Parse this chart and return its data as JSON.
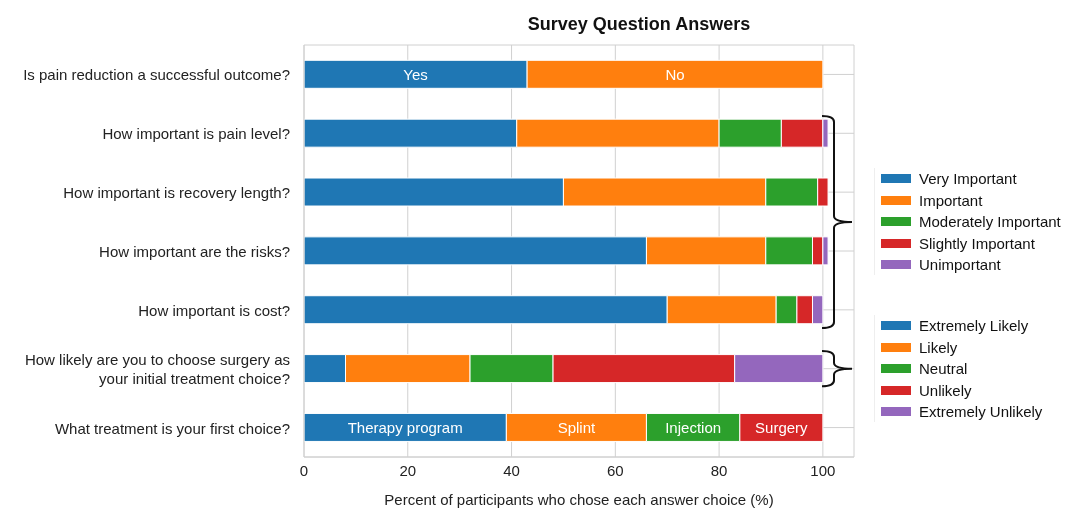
{
  "chart_data": {
    "type": "bar",
    "orientation": "horizontal",
    "stacked": true,
    "title": "Survey Question Answers",
    "xlabel": "Percent of participants who chose each answer choice (%)",
    "categories": [
      "Is pain reduction a successful outcome?",
      "How important is pain level?",
      "How important is recovery length?",
      "How important are the risks?",
      "How important is cost?",
      "How likely are you to choose surgery as your initial treatment choice?",
      "What treatment is your first choice?"
    ],
    "xlim": [
      0,
      106
    ],
    "xticks": [
      0,
      20,
      40,
      60,
      80,
      100
    ],
    "grid": true,
    "legend": "right",
    "series": [
      {
        "color": "#1f77b4",
        "values": [
          43,
          null,
          null,
          null,
          null,
          null,
          null
        ]
      },
      {
        "color": "#ff7f0e",
        "values": [
          57,
          null,
          null,
          null,
          null,
          null,
          null
        ]
      },
      {
        "name": "Very Important",
        "color": "#1f77b4",
        "values": [
          null,
          41,
          50,
          66,
          70,
          null,
          null
        ]
      },
      {
        "name": "Important",
        "color": "#ff7f0e",
        "values": [
          null,
          39,
          39,
          23,
          21,
          null,
          null
        ]
      },
      {
        "name": "Moderately Important",
        "color": "#2ca02c",
        "values": [
          null,
          12,
          10,
          9,
          4,
          null,
          null
        ]
      },
      {
        "name": "Slightly Important",
        "color": "#d62728",
        "values": [
          null,
          8,
          2,
          2,
          3,
          null,
          null
        ]
      },
      {
        "name": "Unimportant",
        "color": "#9467bd",
        "values": [
          null,
          1,
          null,
          1,
          2,
          null,
          null
        ]
      },
      {
        "name": "Extremely Likely",
        "color": "#1f77b4",
        "values": [
          null,
          null,
          null,
          null,
          null,
          8,
          null
        ]
      },
      {
        "name": "Likely",
        "color": "#ff7f0e",
        "values": [
          null,
          null,
          null,
          null,
          null,
          24,
          null
        ]
      },
      {
        "name": "Neutral",
        "color": "#2ca02c",
        "values": [
          null,
          null,
          null,
          null,
          null,
          16,
          null
        ]
      },
      {
        "name": "Unlikely",
        "color": "#d62728",
        "values": [
          null,
          null,
          null,
          null,
          null,
          35,
          null
        ]
      },
      {
        "name": "Extremely Unlikely",
        "color": "#9467bd",
        "values": [
          null,
          null,
          null,
          null,
          null,
          17,
          null
        ]
      },
      {
        "color": "#1f77b4",
        "values": [
          null,
          null,
          null,
          null,
          null,
          null,
          39
        ]
      },
      {
        "color": "#ff7f0e",
        "values": [
          null,
          null,
          null,
          null,
          null,
          null,
          27
        ]
      },
      {
        "color": "#2ca02c",
        "values": [
          null,
          null,
          null,
          null,
          null,
          null,
          18
        ]
      },
      {
        "color": "#d62728",
        "values": [
          null,
          null,
          null,
          null,
          null,
          null,
          16
        ]
      }
    ],
    "annotations": [
      "Yes",
      "No",
      "Therapy program",
      "Splint",
      "Injection",
      "Surgery"
    ]
  }
}
